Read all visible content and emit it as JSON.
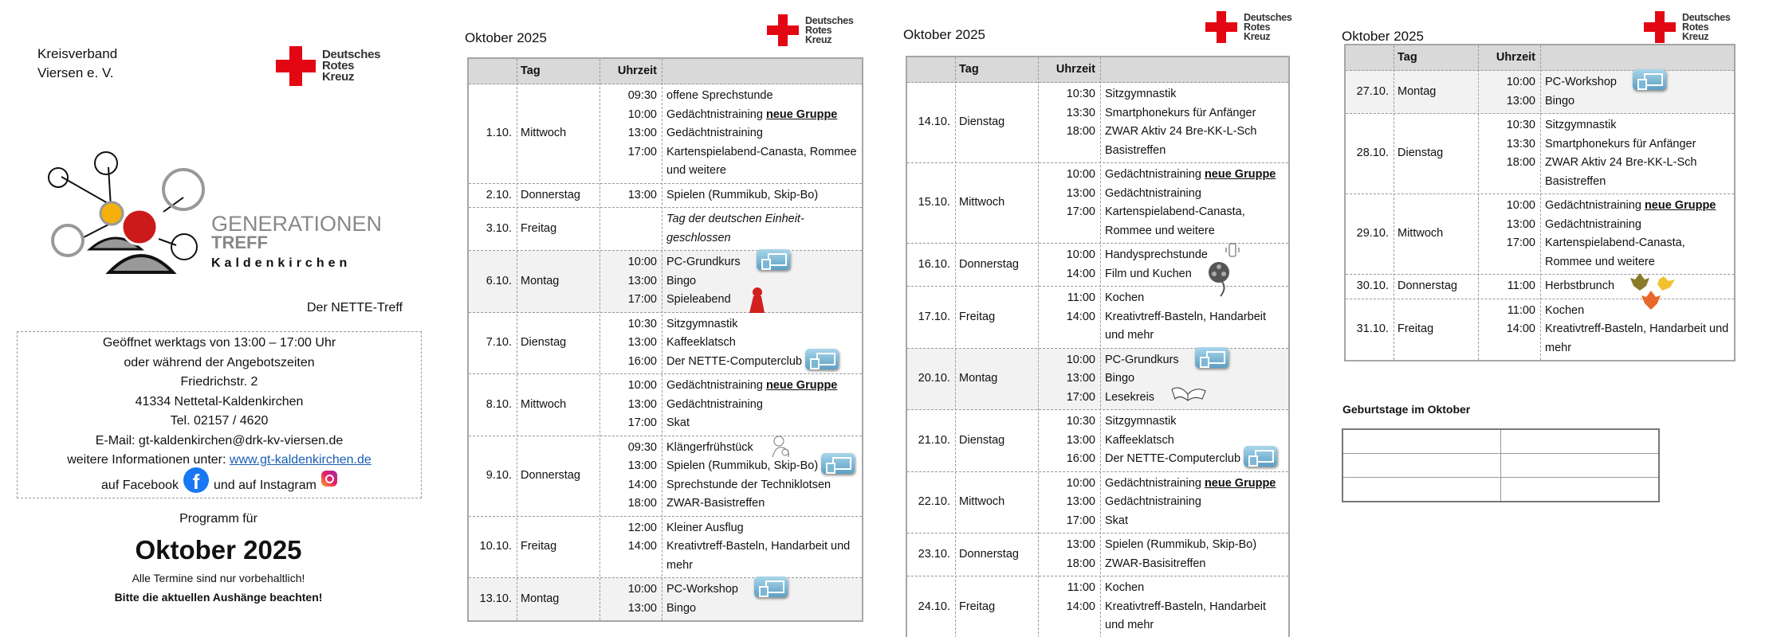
{
  "cover": {
    "org_line1": "Kreisverband",
    "org_line2": "Viersen e. V.",
    "drk_logo": [
      "Deutsches",
      "Rotes",
      "Kreuz"
    ],
    "gt_logo": {
      "line1": "GENERATIONEN",
      "line2": "TREFF",
      "line3": "Kaldenkirchen"
    },
    "nette_treff": "Der NETTE-Treff",
    "info": {
      "hours": "Geöffnet werktags von 13:00 – 17:00 Uhr",
      "or": "oder während der Angebotszeiten",
      "street": "Friedrichstr. 2",
      "city": "41334 Nettetal-Kaldenkirchen",
      "phone": "Tel. 02157 / 4620",
      "email": "E-Mail: gt-kaldenkirchen@drk-kv-viersen.de",
      "more_prefix": "weitere Informationen unter: ",
      "website": "www.gt-kaldenkirchen.de",
      "facebook": "auf Facebook",
      "instagram": "und auf Instagram"
    },
    "programm_for": "Programm für",
    "month": "Oktober 2025",
    "note1": "Alle Termine sind nur vorbehaltlich!",
    "note2": "Bitte die aktuellen Aushänge beachten!"
  },
  "colors": {
    "drk_red": "#e30613",
    "header_gray": "#d9d9d9",
    "shaded_row": "#f2f2f2",
    "link": "#1a5fb4"
  },
  "columns": {
    "tag": "Tag",
    "uhrzeit": "Uhrzeit"
  },
  "pages": [
    {
      "title": "Oktober 2025",
      "rows": [
        {
          "date": "1.10.",
          "day": "Mittwoch",
          "entries": [
            {
              "time": "09:30",
              "text": "offene Sprechstunde"
            },
            {
              "time": "10:00",
              "text": "Gedächtnistraining ",
              "highlight": "neue Gruppe"
            },
            {
              "time": "13:00",
              "text": "Gedächtnistraining"
            },
            {
              "time": "17:00",
              "text": "Kartenspielabend-Canasta, Rommee und weitere"
            }
          ]
        },
        {
          "date": "2.10.",
          "day": "Donnerstag",
          "entries": [
            {
              "time": "13:00",
              "text": "Spielen (Rummikub, Skip-Bo)"
            }
          ]
        },
        {
          "date": "3.10.",
          "day": "Freitag",
          "entries": [
            {
              "time": "",
              "text": "Tag der deutschen Einheit-geschlossen",
              "italic": true
            }
          ]
        },
        {
          "date": "6.10.",
          "day": "Montag",
          "shaded": true,
          "entries": [
            {
              "time": "10:00",
              "text": "PC-Grundkurs",
              "icon": "computer-icon"
            },
            {
              "time": "13:00",
              "text": "Bingo"
            },
            {
              "time": "17:00",
              "text": "Spieleabend",
              "icon": "game-pawn-icon"
            }
          ]
        },
        {
          "date": "7.10.",
          "day": "Dienstag",
          "entries": [
            {
              "time": "10:30",
              "text": "Sitzgymnastik"
            },
            {
              "time": "13:00",
              "text": "Kaffeeklatsch"
            },
            {
              "time": "16:00",
              "text": "Der NETTE-Computerclub",
              "icon": "computer-icon"
            }
          ]
        },
        {
          "date": "8.10.",
          "day": "Mittwoch",
          "entries": [
            {
              "time": "10:00",
              "text": "Gedächtnistraining ",
              "highlight": "neue Gruppe"
            },
            {
              "time": "13:00",
              "text": "Gedächtnistraining"
            },
            {
              "time": "17:00",
              "text": "Skat"
            }
          ]
        },
        {
          "date": "9.10.",
          "day": "Donnerstag",
          "entries": [
            {
              "time": "09:30",
              "text": "Klängerfrühstück",
              "icon": "breakfast-sketch-icon"
            },
            {
              "time": "13:00",
              "text": "Spielen (Rummikub, Skip-Bo)",
              "icon": "computer-icon"
            },
            {
              "time": "14:00",
              "text": "Sprechstunde der Techniklotsen"
            },
            {
              "time": "18:00",
              "text": "ZWAR-Basistreffen"
            }
          ]
        },
        {
          "date": "10.10.",
          "day": "Freitag",
          "entries": [
            {
              "time": "12:00",
              "text": "Kleiner Ausflug"
            },
            {
              "time": "14:00",
              "text": "Kreativtreff-Basteln, Handarbeit und mehr"
            }
          ]
        },
        {
          "date": "13.10.",
          "day": "Montag",
          "shaded": true,
          "entries": [
            {
              "time": "10:00",
              "text": "PC-Workshop",
              "icon": "computer-icon"
            },
            {
              "time": "13:00",
              "text": "Bingo"
            }
          ]
        }
      ]
    },
    {
      "title": "Oktober 2025",
      "rows": [
        {
          "date": "14.10.",
          "day": "Dienstag",
          "entries": [
            {
              "time": "10:30",
              "text": "Sitzgymnastik"
            },
            {
              "time": "13:30",
              "text": "Smartphonekurs für Anfänger"
            },
            {
              "time": "18:00",
              "text": "ZWAR Aktiv 24 Bre-KK-L-Sch Basistreffen"
            }
          ]
        },
        {
          "date": "15.10.",
          "day": "Mittwoch",
          "entries": [
            {
              "time": "10:00",
              "text": "Gedächtnistraining ",
              "highlight": "neue Gruppe"
            },
            {
              "time": "13:00",
              "text": "Gedächtnistraining"
            },
            {
              "time": "17:00",
              "text": "Kartenspielabend-Canasta, Rommee und weitere"
            }
          ]
        },
        {
          "date": "16.10.",
          "day": "Donnerstag",
          "entries": [
            {
              "time": "10:00",
              "text": "Handysprechstunde",
              "icon": "smartphone-icon"
            },
            {
              "time": "14:00",
              "text": "Film und Kuchen",
              "icon": "film-reel-icon"
            }
          ]
        },
        {
          "date": "17.10.",
          "day": "Freitag",
          "entries": [
            {
              "time": "11:00",
              "text": "Kochen"
            },
            {
              "time": "14:00",
              "text": "Kreativtreff-Basteln, Handarbeit und mehr"
            }
          ]
        },
        {
          "date": "20.10.",
          "day": "Montag",
          "shaded": true,
          "entries": [
            {
              "time": "10:00",
              "text": "PC-Grundkurs",
              "icon": "computer-icon"
            },
            {
              "time": "13:00",
              "text": "Bingo"
            },
            {
              "time": "17:00",
              "text": "Lesekreis",
              "icon": "open-book-icon"
            }
          ]
        },
        {
          "date": "21.10.",
          "day": "Dienstag",
          "entries": [
            {
              "time": "10:30",
              "text": "Sitzgymnastik"
            },
            {
              "time": "13:00",
              "text": "Kaffeeklatsch"
            },
            {
              "time": "16:00",
              "text": "Der NETTE-Computerclub",
              "icon": "computer-icon"
            }
          ]
        },
        {
          "date": "22.10.",
          "day": "Mittwoch",
          "entries": [
            {
              "time": "10:00",
              "text": "Gedächtnistraining ",
              "highlight": "neue Gruppe"
            },
            {
              "time": "13:00",
              "text": "Gedächtnistraining"
            },
            {
              "time": "17:00",
              "text": "Skat"
            }
          ]
        },
        {
          "date": "23.10.",
          "day": "Donnerstag",
          "entries": [
            {
              "time": "13:00",
              "text": "Spielen (Rummikub, Skip-Bo)"
            },
            {
              "time": "18:00",
              "text": "ZWAR-Basisitreffen"
            }
          ]
        },
        {
          "date": "24.10.",
          "day": "Freitag",
          "entries": [
            {
              "time": "11:00",
              "text": "Kochen"
            },
            {
              "time": "14:00",
              "text": "Kreativtreff-Basteln, Handarbeit und mehr"
            }
          ]
        }
      ]
    },
    {
      "title": "Oktober 2025",
      "rows": [
        {
          "date": "27.10.",
          "day": "Montag",
          "shaded": true,
          "entries": [
            {
              "time": "10:00",
              "text": "PC-Workshop",
              "icon": "computer-icon"
            },
            {
              "time": "13:00",
              "text": "Bingo"
            }
          ]
        },
        {
          "date": "28.10.",
          "day": "Dienstag",
          "entries": [
            {
              "time": "10:30",
              "text": "Sitzgymnastik"
            },
            {
              "time": "13:30",
              "text": "Smartphonekurs für Anfänger"
            },
            {
              "time": "18:00",
              "text": "ZWAR Aktiv 24 Bre-KK-L-Sch Basistreffen"
            }
          ]
        },
        {
          "date": "29.10.",
          "day": "Mittwoch",
          "entries": [
            {
              "time": "10:00",
              "text": "Gedächtnistraining ",
              "highlight": "neue Gruppe"
            },
            {
              "time": "13:00",
              "text": "Gedächtnistraining"
            },
            {
              "time": "17:00",
              "text": "Kartenspielabend-Canasta, Rommee und weitere"
            }
          ]
        },
        {
          "date": "30.10.",
          "day": "Donnerstag",
          "entries": [
            {
              "time": "11:00",
              "text": "Herbstbrunch",
              "icon": "autumn-leaves-icon"
            }
          ]
        },
        {
          "date": "31.10.",
          "day": "Freitag",
          "entries": [
            {
              "time": "11:00",
              "text": "Kochen"
            },
            {
              "time": "14:00",
              "text": "Kreativtreff-Basteln, Handarbeit und mehr"
            }
          ]
        }
      ]
    }
  ],
  "birthdays": {
    "title": "Geburtstage im Oktober",
    "rows": [
      [
        "",
        ""
      ],
      [
        "",
        ""
      ],
      [
        "",
        ""
      ]
    ]
  }
}
